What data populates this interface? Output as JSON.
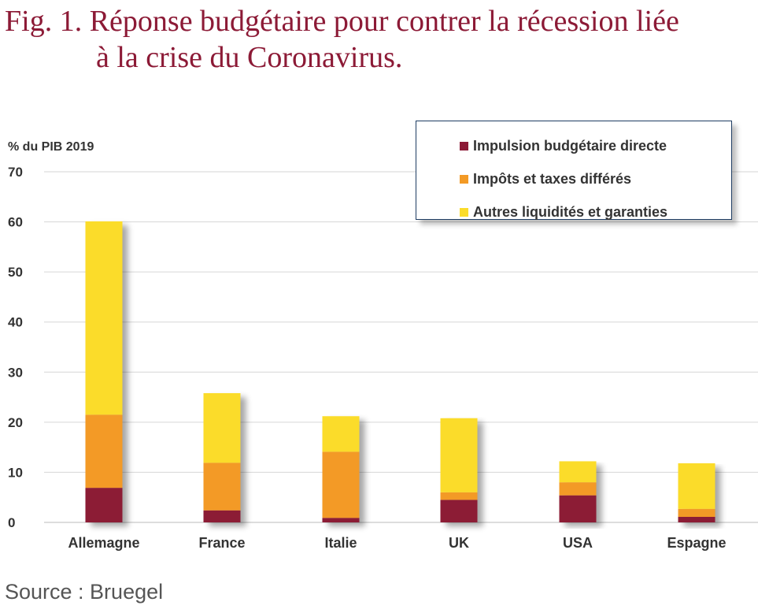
{
  "title": {
    "line1": "Fig. 1. Réponse budgétaire pour contrer la récession liée",
    "line2": "à la crise du Coronavirus."
  },
  "source": "Source : Bruegel",
  "chart_data": {
    "type": "bar",
    "stacked": true,
    "ylabel": "% du PIB 2019",
    "ylim": [
      0,
      70
    ],
    "yticks": [
      0,
      10,
      20,
      30,
      40,
      50,
      60,
      70
    ],
    "grid": true,
    "legend_position": "top-right",
    "categories": [
      "Allemagne",
      "France",
      "Italie",
      "UK",
      "USA",
      "Espagne"
    ],
    "series": [
      {
        "name": "Impulsion budgétaire directe",
        "color": "#8c1a36",
        "values": [
          6.9,
          2.4,
          0.9,
          4.5,
          5.4,
          1.1
        ]
      },
      {
        "name": "Impôts et taxes différés",
        "color": "#f39a26",
        "values": [
          14.6,
          9.5,
          13.2,
          1.5,
          2.6,
          1.6
        ]
      },
      {
        "name": "Autres liquidités et garanties",
        "color": "#fbdc2a",
        "values": [
          38.6,
          13.9,
          7.1,
          14.8,
          4.2,
          9.1
        ]
      }
    ]
  }
}
